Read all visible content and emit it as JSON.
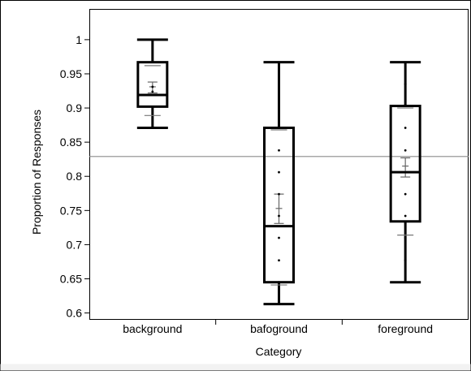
{
  "chart_data": {
    "type": "box",
    "xlabel": "Category",
    "ylabel": "Proportion of Responses",
    "categories": [
      "background",
      "bafoground",
      "foreground"
    ],
    "ylim": [
      0.59,
      1.045
    ],
    "yticks": [
      "0.6",
      "0.65",
      "0.7",
      "0.75",
      "0.8",
      "0.85",
      "0.9",
      "0.95",
      "1"
    ],
    "reference_line": 0.829,
    "grid": false,
    "boxes": [
      {
        "category": "background",
        "whisker_low": 0.871,
        "q1": 0.902,
        "median": 0.919,
        "q3": 0.967,
        "whisker_high": 1.0,
        "mean": 0.931,
        "mean_ci": [
          0.922,
          0.938
        ],
        "sd_marks": [
          0.889,
          0.962
        ],
        "points": [
          0.931,
          0.924
        ]
      },
      {
        "category": "bafoground",
        "whisker_low": 0.613,
        "q1": 0.645,
        "median": 0.727,
        "q3": 0.871,
        "whisker_high": 0.967,
        "mean": 0.753,
        "mean_ci": [
          0.731,
          0.774
        ],
        "sd_marks": [
          0.641,
          0.868
        ],
        "points": [
          0.935,
          0.903,
          0.838,
          0.806,
          0.774,
          0.742,
          0.71,
          0.677,
          0.645
        ]
      },
      {
        "category": "foreground",
        "whisker_low": 0.645,
        "q1": 0.734,
        "median": 0.806,
        "q3": 0.903,
        "whisker_high": 0.967,
        "mean": 0.815,
        "mean_ci": [
          0.799,
          0.827
        ],
        "sd_marks": [
          0.714,
          0.9
        ],
        "points": [
          0.935,
          0.903,
          0.871,
          0.838,
          0.806,
          0.774,
          0.742,
          0.71,
          0.677
        ]
      }
    ]
  }
}
